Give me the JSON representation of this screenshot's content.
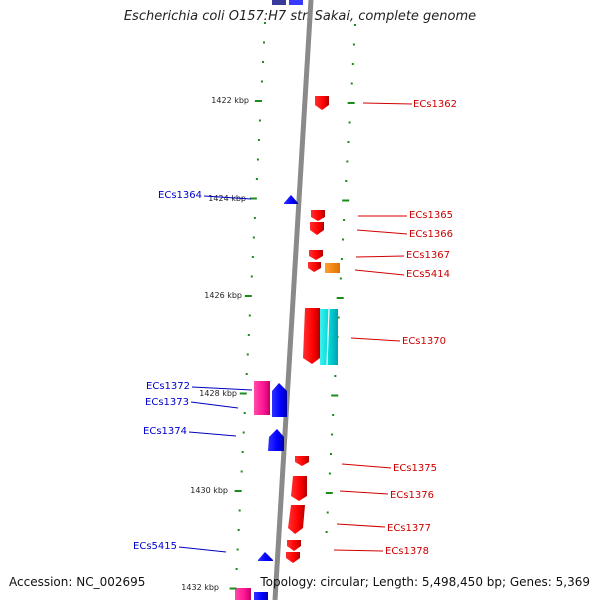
{
  "title": "Escherichia coli O157:H7 str. Sakai, complete genome",
  "footer": {
    "accession": "Accession: NC_002695",
    "topology": "Topology: circular; Length: 5,498,450 bp; Genes: 5,369"
  },
  "colors": {
    "forward_gene": "#ff0000",
    "reverse_gene": "#0000ff",
    "magenta_feature": "#ff1493",
    "cyan_feature": "#00e5e5",
    "orange_feature": "#ff8c00",
    "tick": "#1a8c1a",
    "backbone": "#888888"
  },
  "ticks": {
    "labels": [
      "1422 kbp",
      "1424 kbp",
      "1426 kbp",
      "1428 kbp",
      "1430 kbp",
      "1432 kbp"
    ]
  },
  "genes": {
    "forward": [
      "ECs1362",
      "ECs1365",
      "ECs1366",
      "ECs1367",
      "ECs5414",
      "ECs1370",
      "ECs1375",
      "ECs1376",
      "ECs1377",
      "ECs1378"
    ],
    "reverse": [
      "ECs1364",
      "ECs1372",
      "ECs1373",
      "ECs1374",
      "ECs5415"
    ]
  }
}
